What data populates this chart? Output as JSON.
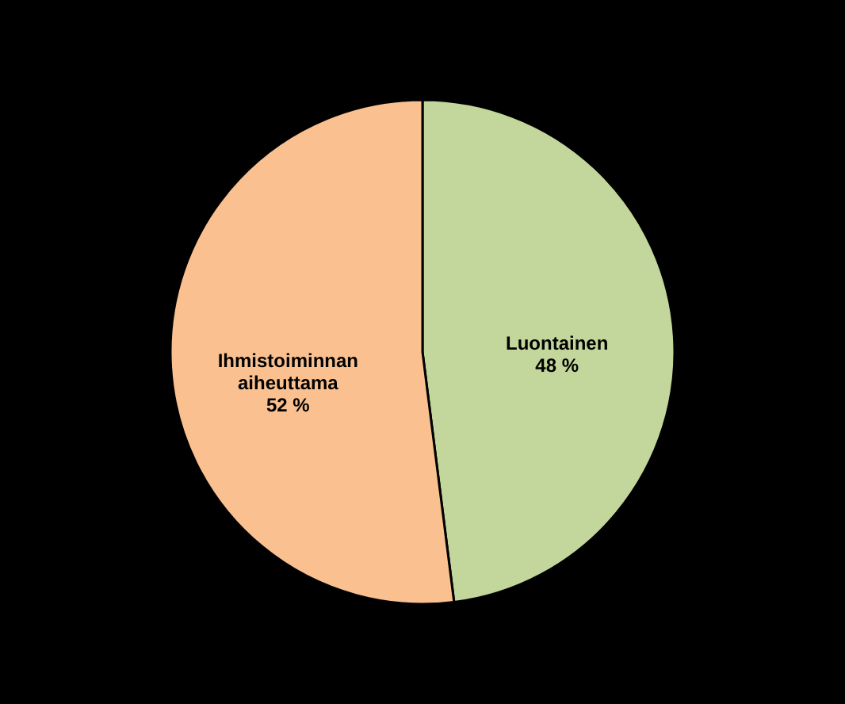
{
  "chart_data": {
    "type": "pie",
    "categories": [
      "Luontainen",
      "Ihmistoiminnan aiheuttama"
    ],
    "values": [
      48,
      52
    ],
    "colors": [
      "#c3d69b",
      "#fac090"
    ],
    "value_labels": [
      "48 %",
      "52 %"
    ],
    "legend": false
  }
}
